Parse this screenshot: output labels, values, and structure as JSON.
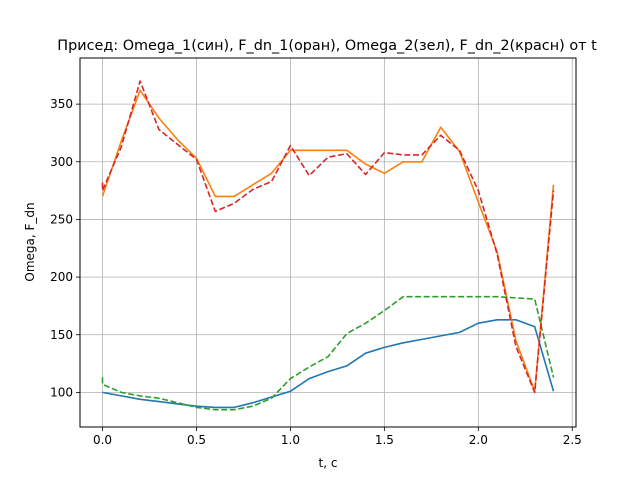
{
  "chart_data": {
    "type": "line",
    "title": "Присед: Omega_1(син), F_dn_1(оран), Omega_2(зел), F_dn_2(красн) от t",
    "xlabel": "t, c",
    "ylabel": "Omega, F_dn",
    "xlim": [
      -0.12,
      2.52
    ],
    "ylim": [
      70,
      390
    ],
    "xticks": [
      0.0,
      0.5,
      1.0,
      1.5,
      2.0,
      2.5
    ],
    "xtick_labels": [
      "0.0",
      "0.5",
      "1.0",
      "1.5",
      "2.0",
      "2.5"
    ],
    "yticks": [
      100,
      150,
      200,
      250,
      300,
      350
    ],
    "ytick_labels": [
      "100",
      "150",
      "200",
      "250",
      "300",
      "350"
    ],
    "grid": true,
    "series": [
      {
        "color": "#1f77b4",
        "dash": "solid",
        "x": [
          0.0,
          0.1,
          0.2,
          0.3,
          0.4,
          0.5,
          0.6,
          0.7,
          0.8,
          0.9,
          1.0,
          1.1,
          1.2,
          1.3,
          1.4,
          1.5,
          1.6,
          1.7,
          1.8,
          1.9,
          2.0,
          2.1,
          2.2,
          2.3,
          2.4
        ],
        "y": [
          100,
          97,
          94,
          92,
          90,
          88,
          87,
          87,
          91,
          96,
          101,
          112,
          118,
          123,
          134,
          139,
          143,
          146,
          149,
          152,
          160,
          163,
          163,
          157,
          101
        ]
      },
      {
        "color": "#ff7f0e",
        "dash": "solid",
        "x": [
          0.0,
          0.1,
          0.2,
          0.3,
          0.4,
          0.5,
          0.6,
          0.7,
          0.8,
          0.9,
          1.0,
          1.1,
          1.2,
          1.3,
          1.4,
          1.5,
          1.6,
          1.7,
          1.8,
          1.9,
          2.0,
          2.1,
          2.2,
          2.3,
          2.4
        ],
        "y": [
          270,
          318,
          362,
          338,
          319,
          303,
          270,
          270,
          280,
          290,
          310,
          310,
          310,
          310,
          298,
          290,
          300,
          300,
          330,
          309,
          265,
          222,
          145,
          101,
          280
        ]
      },
      {
        "color": "#2ca02c",
        "dash": "dashed",
        "x": [
          0.0,
          0.0,
          0.1,
          0.2,
          0.3,
          0.4,
          0.5,
          0.6,
          0.7,
          0.8,
          0.9,
          1.0,
          1.1,
          1.2,
          1.3,
          1.4,
          1.5,
          1.6,
          1.7,
          1.8,
          1.9,
          2.0,
          2.1,
          2.2,
          2.3,
          2.4
        ],
        "y": [
          113,
          107,
          100,
          97,
          95,
          91,
          87,
          85,
          85,
          88,
          95,
          112,
          122,
          131,
          151,
          160,
          171,
          183,
          183,
          183,
          183,
          183,
          183,
          182,
          181,
          113
        ]
      },
      {
        "color": "#d62728",
        "dash": "dashed",
        "x": [
          0.0,
          0.0,
          0.1,
          0.2,
          0.3,
          0.4,
          0.5,
          0.6,
          0.7,
          0.8,
          0.9,
          1.0,
          1.1,
          1.2,
          1.3,
          1.4,
          1.5,
          1.6,
          1.7,
          1.8,
          1.9,
          2.0,
          2.1,
          2.2,
          2.3,
          2.4
        ],
        "y": [
          282,
          275,
          313,
          370,
          328,
          315,
          302,
          257,
          264,
          276,
          283,
          314,
          288,
          304,
          307,
          289,
          308,
          306,
          306,
          323,
          310,
          275,
          220,
          140,
          100,
          275
        ]
      }
    ]
  }
}
